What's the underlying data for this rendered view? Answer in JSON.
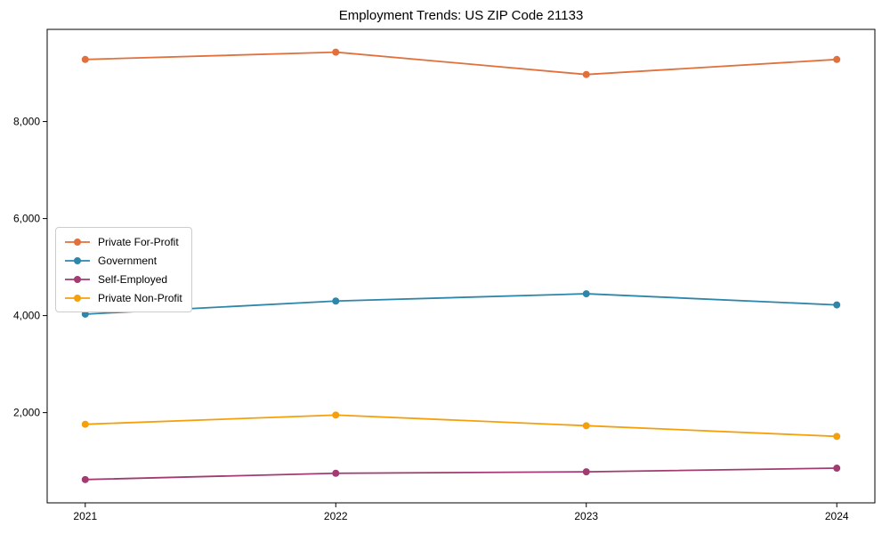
{
  "chart_data": {
    "type": "line",
    "title": "Employment Trends: US ZIP Code 21133",
    "categories": [
      "2021",
      "2022",
      "2023",
      "2024"
    ],
    "series": [
      {
        "name": "Private For-Profit",
        "color": "#E1703C",
        "values": [
          9280,
          9430,
          8970,
          9280
        ]
      },
      {
        "name": "Government",
        "color": "#2E86AB",
        "values": [
          4030,
          4300,
          4450,
          4220
        ]
      },
      {
        "name": "Self-Employed",
        "color": "#A23B72",
        "values": [
          620,
          750,
          780,
          855
        ]
      },
      {
        "name": "Private Non-Profit",
        "color": "#F5A00A",
        "values": [
          1760,
          1950,
          1730,
          1510
        ]
      }
    ],
    "yticks": [
      2000,
      4000,
      6000,
      8000
    ],
    "ylim": [
      140,
      9900
    ],
    "xlabel": "",
    "ylabel": "",
    "grid": false,
    "legend_position": "center-left",
    "marker": "circle",
    "axis_color": "#000000"
  }
}
